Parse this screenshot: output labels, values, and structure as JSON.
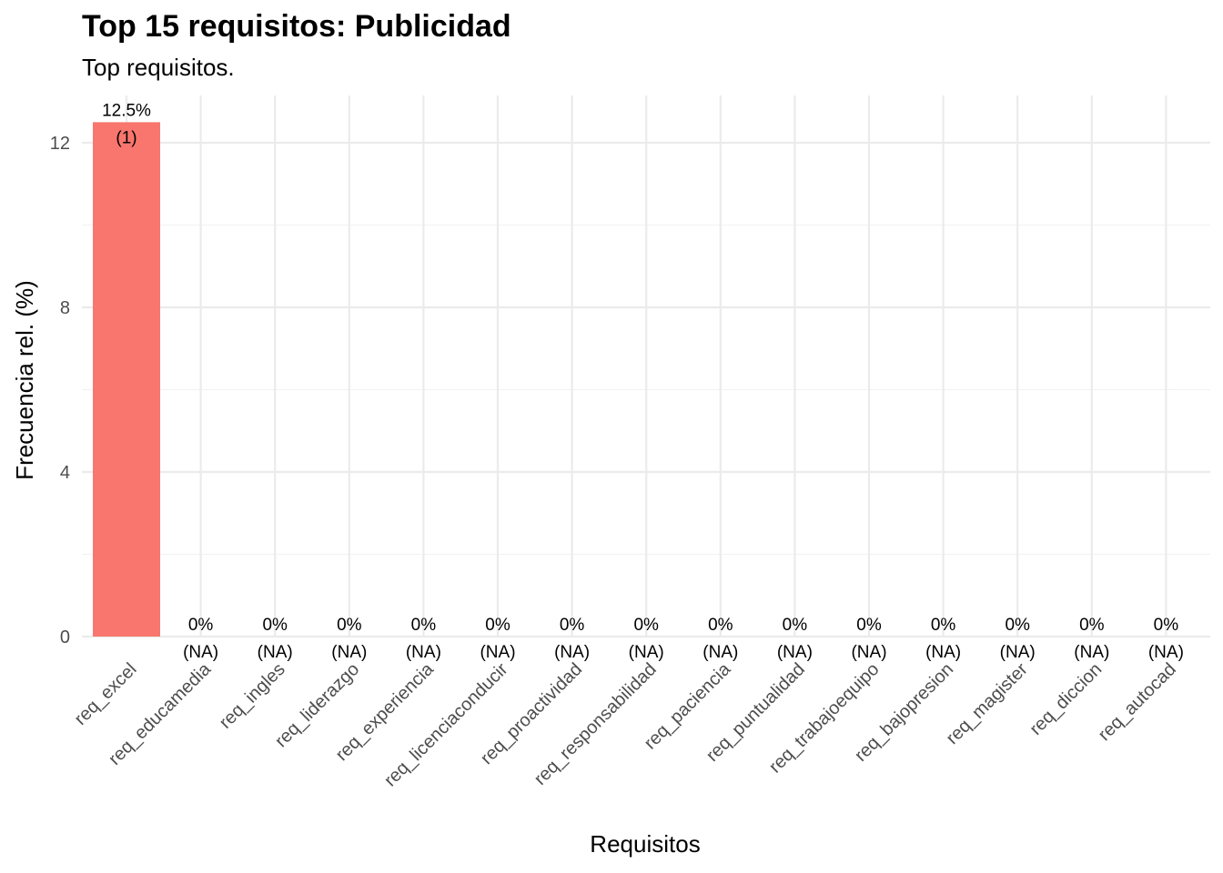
{
  "title": "Top 15 requisitos: Publicidad",
  "subtitle": "Top requisitos.",
  "colors": {
    "bar": "#F8766D",
    "grid_major": "#EBEBEB",
    "grid_minor": "#F2F2F2",
    "tick_text": "#4D4D4D"
  },
  "chart_data": {
    "type": "bar",
    "title": "Top 15 requisitos: Publicidad",
    "subtitle": "Top requisitos.",
    "xlabel": "Requisitos",
    "ylabel": "Frecuencia rel. (%)",
    "ylim": [
      0,
      12.5
    ],
    "yticks": [
      "0",
      "4",
      "8",
      "12"
    ],
    "grid": true,
    "categories": [
      "req_excel",
      "req_educamedia",
      "req_ingles",
      "req_liderazgo",
      "req_experiencia",
      "req_licenciaconducir",
      "req_proactividad",
      "req_responsabilidad",
      "req_paciencia",
      "req_puntualidad",
      "req_trabajoequipo",
      "req_bajopresion",
      "req_magister",
      "req_diccion",
      "req_autocad"
    ],
    "values": [
      12.5,
      0,
      0,
      0,
      0,
      0,
      0,
      0,
      0,
      0,
      0,
      0,
      0,
      0,
      0
    ],
    "pct_labels": [
      "12.5%",
      "0%",
      "0%",
      "0%",
      "0%",
      "0%",
      "0%",
      "0%",
      "0%",
      "0%",
      "0%",
      "0%",
      "0%",
      "0%",
      "0%"
    ],
    "count_labels": [
      "(1)",
      "(NA)",
      "(NA)",
      "(NA)",
      "(NA)",
      "(NA)",
      "(NA)",
      "(NA)",
      "(NA)",
      "(NA)",
      "(NA)",
      "(NA)",
      "(NA)",
      "(NA)",
      "(NA)"
    ]
  }
}
